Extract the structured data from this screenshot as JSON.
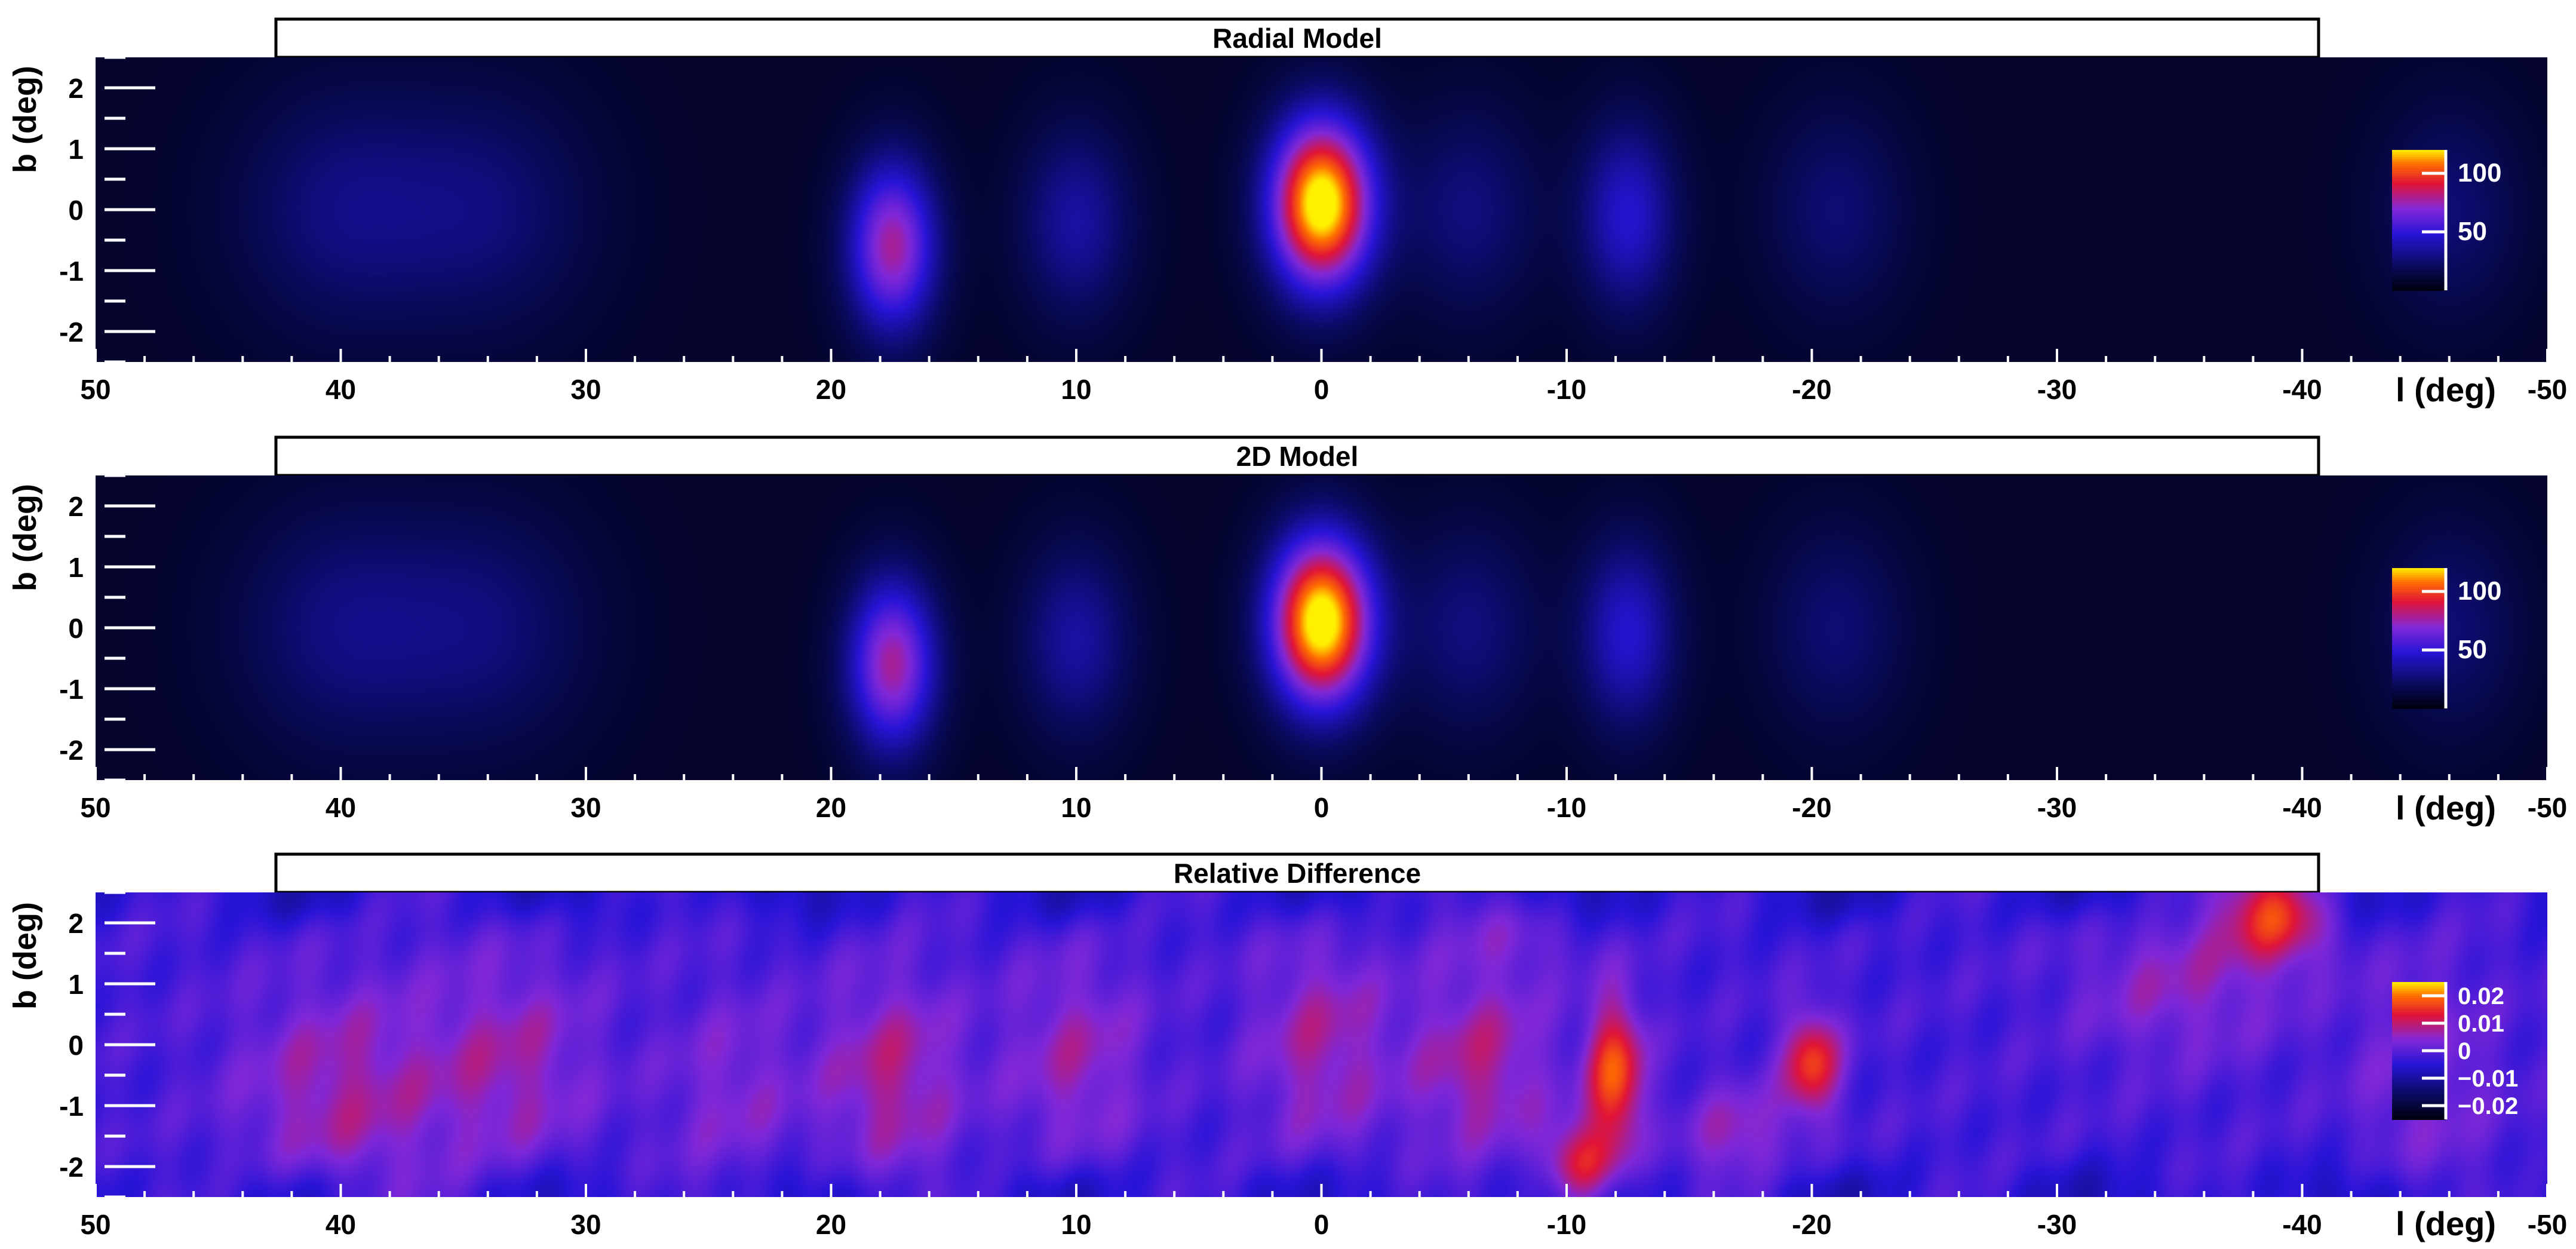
{
  "figure": {
    "panels": [
      "Radial Model",
      "2D Model",
      "Relative Difference"
    ]
  },
  "chart_data": [
    {
      "type": "heatmap",
      "title": "Radial Model",
      "xlabel": "l (deg)",
      "ylabel": "b (deg)",
      "xlim": [
        50,
        -50
      ],
      "ylim": [
        -2.5,
        2.5
      ],
      "x_ticks": [
        "50",
        "40",
        "30",
        "20",
        "10",
        "0",
        "-10",
        "-20",
        "-30",
        "-40",
        "-50"
      ],
      "y_ticks": [
        "-2",
        "-1",
        "0",
        "1",
        "2"
      ],
      "colorbar": {
        "range": [
          0,
          120
        ],
        "ticks": [
          "50",
          "100"
        ]
      },
      "features": [
        {
          "l": 0,
          "b": 0.1,
          "sigma_l": 1.5,
          "sigma_b": 1.0,
          "value": 120
        },
        {
          "l": 17.5,
          "b": -0.6,
          "sigma_l": 1.3,
          "sigma_b": 1.0,
          "value": 70
        },
        {
          "l": -12.5,
          "b": -0.1,
          "sigma_l": 1.4,
          "sigma_b": 1.1,
          "value": 38
        },
        {
          "l": 10,
          "b": -0.2,
          "sigma_l": 1.6,
          "sigma_b": 1.1,
          "value": 28
        },
        {
          "l": 40,
          "b": 0,
          "sigma_l": 3,
          "sigma_b": 1.4,
          "value": 20
        },
        {
          "l": 34,
          "b": 0,
          "sigma_l": 3,
          "sigma_b": 1.4,
          "value": 18
        },
        {
          "l": -6,
          "b": 0,
          "sigma_l": 2,
          "sigma_b": 1.2,
          "value": 20
        },
        {
          "l": -21,
          "b": 0,
          "sigma_l": 2,
          "sigma_b": 1.2,
          "value": 18
        },
        {
          "l": -46,
          "b": 0,
          "sigma_l": 2,
          "sigma_b": 1.2,
          "value": 18
        }
      ],
      "background": 8
    },
    {
      "type": "heatmap",
      "title": "2D Model",
      "xlabel": "l (deg)",
      "ylabel": "b (deg)",
      "xlim": [
        50,
        -50
      ],
      "ylim": [
        -2.5,
        2.5
      ],
      "x_ticks": [
        "50",
        "40",
        "30",
        "20",
        "10",
        "0",
        "-10",
        "-20",
        "-30",
        "-40",
        "-50"
      ],
      "y_ticks": [
        "-2",
        "-1",
        "0",
        "1",
        "2"
      ],
      "colorbar": {
        "range": [
          0,
          120
        ],
        "ticks": [
          "50",
          "100"
        ]
      },
      "features": [
        {
          "l": 0,
          "b": 0.1,
          "sigma_l": 1.5,
          "sigma_b": 1.0,
          "value": 120
        },
        {
          "l": 17.5,
          "b": -0.6,
          "sigma_l": 1.3,
          "sigma_b": 1.0,
          "value": 70
        },
        {
          "l": -12.5,
          "b": -0.1,
          "sigma_l": 1.4,
          "sigma_b": 1.1,
          "value": 38
        },
        {
          "l": 10,
          "b": -0.2,
          "sigma_l": 1.6,
          "sigma_b": 1.1,
          "value": 28
        },
        {
          "l": 40,
          "b": 0,
          "sigma_l": 3,
          "sigma_b": 1.4,
          "value": 20
        },
        {
          "l": 34,
          "b": 0,
          "sigma_l": 3,
          "sigma_b": 1.4,
          "value": 18
        },
        {
          "l": -6,
          "b": 0,
          "sigma_l": 2,
          "sigma_b": 1.2,
          "value": 20
        },
        {
          "l": -21,
          "b": 0,
          "sigma_l": 2,
          "sigma_b": 1.2,
          "value": 18
        },
        {
          "l": -46,
          "b": 0,
          "sigma_l": 2,
          "sigma_b": 1.2,
          "value": 18
        }
      ],
      "background": 8
    },
    {
      "type": "heatmap",
      "title": "Relative Difference",
      "xlabel": "l (deg)",
      "ylabel": "b (deg)",
      "xlim": [
        50,
        -50
      ],
      "ylim": [
        -2.5,
        2.5
      ],
      "x_ticks": [
        "50",
        "40",
        "30",
        "20",
        "10",
        "0",
        "-10",
        "-20",
        "-30",
        "-40",
        "-50"
      ],
      "y_ticks": [
        "-2",
        "-1",
        "0",
        "1",
        "2"
      ],
      "colorbar": {
        "range": [
          -0.025,
          0.025
        ],
        "ticks": [
          "0.02",
          "0.01",
          "0",
          "−0.01",
          "−0.02"
        ]
      },
      "features": [
        {
          "l": 40,
          "b": -0.8,
          "sigma_l": 3,
          "sigma_b": 1.3,
          "value": 0.009
        },
        {
          "l": 33,
          "b": -0.3,
          "sigma_l": 2.5,
          "sigma_b": 1.3,
          "value": 0.008
        },
        {
          "l": 24,
          "b": -0.8,
          "sigma_l": 2,
          "sigma_b": 1.2,
          "value": 0.006
        },
        {
          "l": 17.5,
          "b": -0.5,
          "sigma_l": 2,
          "sigma_b": 1.2,
          "value": 0.01
        },
        {
          "l": 10,
          "b": -0.2,
          "sigma_l": 2,
          "sigma_b": 1.2,
          "value": 0.008
        },
        {
          "l": 0,
          "b": 0,
          "sigma_l": 2,
          "sigma_b": 1.3,
          "value": 0.009
        },
        {
          "l": -6.5,
          "b": -0.3,
          "sigma_l": 2,
          "sigma_b": 1.1,
          "value": 0.01
        },
        {
          "l": -12,
          "b": -0.5,
          "sigma_l": 0.8,
          "sigma_b": 0.9,
          "value": 0.02
        },
        {
          "l": -10.5,
          "b": -2.0,
          "sigma_l": 1.0,
          "sigma_b": 0.5,
          "value": 0.016
        },
        {
          "l": -20,
          "b": -0.3,
          "sigma_l": 0.8,
          "sigma_b": 0.6,
          "value": 0.018
        },
        {
          "l": -17,
          "b": -1.5,
          "sigma_l": 1.5,
          "sigma_b": 0.6,
          "value": 0.008
        },
        {
          "l": -35,
          "b": 1.0,
          "sigma_l": 3,
          "sigma_b": 0.9,
          "value": 0.007
        },
        {
          "l": -39,
          "b": 2.2,
          "sigma_l": 1.5,
          "sigma_b": 0.6,
          "value": 0.018
        },
        {
          "l": -45,
          "b": -0.5,
          "sigma_l": 2,
          "sigma_b": 1.3,
          "value": 0.006
        },
        {
          "l": -8,
          "b": 1.8,
          "sigma_l": 2,
          "sigma_b": 0.5,
          "value": 0.004
        }
      ],
      "background": -0.002
    }
  ]
}
